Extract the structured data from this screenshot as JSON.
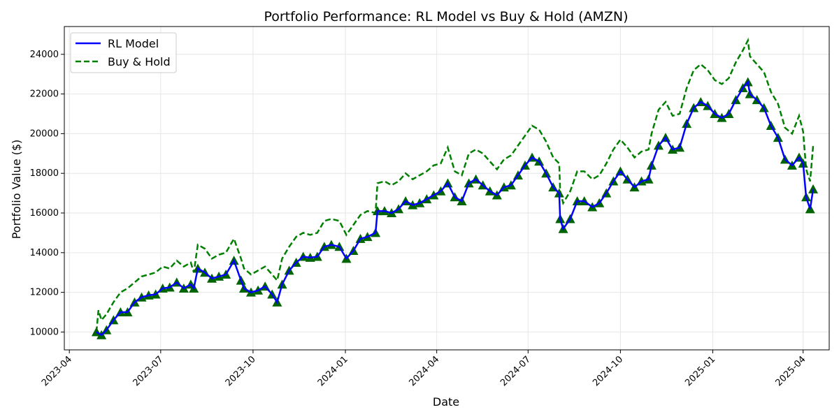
{
  "chart_data": {
    "type": "line",
    "title": "Portfolio Performance: RL Model vs Buy & Hold (AMZN)",
    "xlabel": "Date",
    "ylabel": "Portfolio Value ($)",
    "xlim": [
      "2023-03-27",
      "2025-04-27"
    ],
    "ylim": [
      9100,
      25400
    ],
    "x_ticks": [
      "2023-04-01",
      "2023-07-01",
      "2023-10-01",
      "2024-01-01",
      "2024-04-01",
      "2024-07-01",
      "2024-10-01",
      "2025-01-01",
      "2025-04-01"
    ],
    "x_tick_labels": [
      "2023-04",
      "2023-07",
      "2023-10",
      "2024-01",
      "2024-04",
      "2024-07",
      "2024-10",
      "2025-01",
      "2025-04"
    ],
    "y_ticks": [
      10000,
      12000,
      14000,
      16000,
      18000,
      20000,
      22000,
      24000
    ],
    "y_tick_labels": [
      "10000",
      "12000",
      "14000",
      "16000",
      "18000",
      "20000",
      "22000",
      "24000"
    ],
    "grid": true,
    "legend_position": "upper-left",
    "series": [
      {
        "name": "RL Model",
        "color": "#0000ff",
        "style": "solid",
        "points": [
          [
            "2023-04-28",
            10000
          ],
          [
            "2023-05-03",
            9850
          ],
          [
            "2023-05-08",
            10100
          ],
          [
            "2023-05-15",
            10600
          ],
          [
            "2023-05-22",
            11000
          ],
          [
            "2023-05-29",
            11000
          ],
          [
            "2023-06-05",
            11500
          ],
          [
            "2023-06-12",
            11750
          ],
          [
            "2023-06-19",
            11850
          ],
          [
            "2023-06-26",
            11900
          ],
          [
            "2023-07-03",
            12200
          ],
          [
            "2023-07-10",
            12250
          ],
          [
            "2023-07-17",
            12500
          ],
          [
            "2023-07-24",
            12200
          ],
          [
            "2023-07-31",
            12400
          ],
          [
            "2023-08-03",
            12200
          ],
          [
            "2023-08-07",
            13200
          ],
          [
            "2023-08-14",
            13000
          ],
          [
            "2023-08-21",
            12700
          ],
          [
            "2023-08-28",
            12800
          ],
          [
            "2023-09-04",
            12900
          ],
          [
            "2023-09-12",
            13600
          ],
          [
            "2023-09-19",
            12600
          ],
          [
            "2023-09-22",
            12200
          ],
          [
            "2023-09-29",
            12000
          ],
          [
            "2023-10-06",
            12100
          ],
          [
            "2023-10-13",
            12300
          ],
          [
            "2023-10-20",
            11900
          ],
          [
            "2023-10-25",
            11500
          ],
          [
            "2023-10-30",
            12400
          ],
          [
            "2023-11-06",
            13100
          ],
          [
            "2023-11-13",
            13500
          ],
          [
            "2023-11-20",
            13800
          ],
          [
            "2023-11-27",
            13750
          ],
          [
            "2023-12-04",
            13800
          ],
          [
            "2023-12-11",
            14300
          ],
          [
            "2023-12-18",
            14400
          ],
          [
            "2023-12-26",
            14300
          ],
          [
            "2024-01-02",
            13700
          ],
          [
            "2024-01-09",
            14100
          ],
          [
            "2024-01-16",
            14700
          ],
          [
            "2024-01-23",
            14800
          ],
          [
            "2024-01-31",
            15000
          ],
          [
            "2024-02-02",
            16100
          ],
          [
            "2024-02-09",
            16100
          ],
          [
            "2024-02-16",
            16000
          ],
          [
            "2024-02-23",
            16200
          ],
          [
            "2024-03-01",
            16600
          ],
          [
            "2024-03-08",
            16400
          ],
          [
            "2024-03-15",
            16500
          ],
          [
            "2024-03-22",
            16700
          ],
          [
            "2024-03-29",
            16900
          ],
          [
            "2024-04-05",
            17100
          ],
          [
            "2024-04-12",
            17500
          ],
          [
            "2024-04-19",
            16800
          ],
          [
            "2024-04-26",
            16600
          ],
          [
            "2024-05-03",
            17500
          ],
          [
            "2024-05-10",
            17700
          ],
          [
            "2024-05-17",
            17400
          ],
          [
            "2024-05-24",
            17100
          ],
          [
            "2024-05-31",
            16900
          ],
          [
            "2024-06-07",
            17300
          ],
          [
            "2024-06-14",
            17400
          ],
          [
            "2024-06-21",
            17900
          ],
          [
            "2024-06-28",
            18400
          ],
          [
            "2024-07-05",
            18800
          ],
          [
            "2024-07-12",
            18600
          ],
          [
            "2024-07-19",
            18000
          ],
          [
            "2024-07-26",
            17300
          ],
          [
            "2024-08-01",
            17000
          ],
          [
            "2024-08-02",
            15700
          ],
          [
            "2024-08-05",
            15200
          ],
          [
            "2024-08-12",
            15700
          ],
          [
            "2024-08-19",
            16600
          ],
          [
            "2024-08-26",
            16600
          ],
          [
            "2024-09-03",
            16300
          ],
          [
            "2024-09-10",
            16500
          ],
          [
            "2024-09-17",
            17000
          ],
          [
            "2024-09-24",
            17600
          ],
          [
            "2024-10-01",
            18100
          ],
          [
            "2024-10-08",
            17700
          ],
          [
            "2024-10-15",
            17300
          ],
          [
            "2024-10-22",
            17600
          ],
          [
            "2024-10-29",
            17700
          ],
          [
            "2024-11-01",
            18400
          ],
          [
            "2024-11-08",
            19400
          ],
          [
            "2024-11-15",
            19800
          ],
          [
            "2024-11-22",
            19200
          ],
          [
            "2024-11-29",
            19300
          ],
          [
            "2024-12-06",
            20500
          ],
          [
            "2024-12-13",
            21300
          ],
          [
            "2024-12-20",
            21600
          ],
          [
            "2024-12-27",
            21400
          ],
          [
            "2025-01-03",
            21000
          ],
          [
            "2025-01-10",
            20800
          ],
          [
            "2025-01-17",
            21000
          ],
          [
            "2025-01-24",
            21700
          ],
          [
            "2025-01-31",
            22300
          ],
          [
            "2025-02-05",
            22600
          ],
          [
            "2025-02-07",
            22000
          ],
          [
            "2025-02-14",
            21700
          ],
          [
            "2025-02-21",
            21300
          ],
          [
            "2025-02-28",
            20400
          ],
          [
            "2025-03-07",
            19800
          ],
          [
            "2025-03-14",
            18700
          ],
          [
            "2025-03-21",
            18400
          ],
          [
            "2025-03-28",
            18800
          ],
          [
            "2025-04-01",
            18500
          ],
          [
            "2025-04-04",
            16800
          ],
          [
            "2025-04-08",
            16200
          ],
          [
            "2025-04-11",
            17200
          ]
        ]
      },
      {
        "name": "Buy & Hold",
        "color": "#008000",
        "style": "dashed",
        "points": [
          [
            "2023-04-28",
            10000
          ],
          [
            "2023-04-30",
            11100
          ],
          [
            "2023-05-03",
            10600
          ],
          [
            "2023-05-08",
            10900
          ],
          [
            "2023-05-15",
            11500
          ],
          [
            "2023-05-22",
            12000
          ],
          [
            "2023-05-29",
            12200
          ],
          [
            "2023-06-05",
            12500
          ],
          [
            "2023-06-12",
            12800
          ],
          [
            "2023-06-19",
            12900
          ],
          [
            "2023-06-26",
            13000
          ],
          [
            "2023-07-03",
            13300
          ],
          [
            "2023-07-10",
            13200
          ],
          [
            "2023-07-17",
            13600
          ],
          [
            "2023-07-24",
            13300
          ],
          [
            "2023-07-31",
            13500
          ],
          [
            "2023-08-03",
            13000
          ],
          [
            "2023-08-07",
            14400
          ],
          [
            "2023-08-14",
            14200
          ],
          [
            "2023-08-21",
            13700
          ],
          [
            "2023-08-28",
            13900
          ],
          [
            "2023-09-04",
            14000
          ],
          [
            "2023-09-12",
            14700
          ],
          [
            "2023-09-19",
            13700
          ],
          [
            "2023-09-22",
            13200
          ],
          [
            "2023-09-29",
            12900
          ],
          [
            "2023-10-06",
            13100
          ],
          [
            "2023-10-13",
            13300
          ],
          [
            "2023-10-20",
            12900
          ],
          [
            "2023-10-25",
            12600
          ],
          [
            "2023-10-30",
            13700
          ],
          [
            "2023-11-06",
            14300
          ],
          [
            "2023-11-13",
            14800
          ],
          [
            "2023-11-20",
            15000
          ],
          [
            "2023-11-27",
            14900
          ],
          [
            "2023-12-04",
            15000
          ],
          [
            "2023-12-11",
            15600
          ],
          [
            "2023-12-18",
            15700
          ],
          [
            "2023-12-26",
            15600
          ],
          [
            "2024-01-02",
            14900
          ],
          [
            "2024-01-09",
            15400
          ],
          [
            "2024-01-16",
            15900
          ],
          [
            "2024-01-23",
            16100
          ],
          [
            "2024-01-31",
            16000
          ],
          [
            "2024-02-02",
            17500
          ],
          [
            "2024-02-09",
            17600
          ],
          [
            "2024-02-16",
            17400
          ],
          [
            "2024-02-23",
            17600
          ],
          [
            "2024-03-01",
            18000
          ],
          [
            "2024-03-08",
            17700
          ],
          [
            "2024-03-15",
            17900
          ],
          [
            "2024-03-22",
            18100
          ],
          [
            "2024-03-29",
            18400
          ],
          [
            "2024-04-05",
            18500
          ],
          [
            "2024-04-12",
            19300
          ],
          [
            "2024-04-19",
            18100
          ],
          [
            "2024-04-26",
            17900
          ],
          [
            "2024-05-03",
            19000
          ],
          [
            "2024-05-10",
            19200
          ],
          [
            "2024-05-17",
            19000
          ],
          [
            "2024-05-24",
            18600
          ],
          [
            "2024-05-31",
            18200
          ],
          [
            "2024-06-07",
            18700
          ],
          [
            "2024-06-14",
            18900
          ],
          [
            "2024-06-21",
            19400
          ],
          [
            "2024-06-28",
            19900
          ],
          [
            "2024-07-05",
            20400
          ],
          [
            "2024-07-12",
            20200
          ],
          [
            "2024-07-19",
            19600
          ],
          [
            "2024-07-26",
            18800
          ],
          [
            "2024-08-01",
            18500
          ],
          [
            "2024-08-02",
            17100
          ],
          [
            "2024-08-05",
            16500
          ],
          [
            "2024-08-12",
            17100
          ],
          [
            "2024-08-19",
            18100
          ],
          [
            "2024-08-26",
            18100
          ],
          [
            "2024-09-03",
            17700
          ],
          [
            "2024-09-10",
            17900
          ],
          [
            "2024-09-17",
            18500
          ],
          [
            "2024-09-24",
            19200
          ],
          [
            "2024-10-01",
            19700
          ],
          [
            "2024-10-08",
            19300
          ],
          [
            "2024-10-15",
            18800
          ],
          [
            "2024-10-22",
            19100
          ],
          [
            "2024-10-29",
            19200
          ],
          [
            "2024-11-01",
            20000
          ],
          [
            "2024-11-08",
            21200
          ],
          [
            "2024-11-15",
            21600
          ],
          [
            "2024-11-22",
            20900
          ],
          [
            "2024-11-29",
            21000
          ],
          [
            "2024-12-06",
            22300
          ],
          [
            "2024-12-13",
            23200
          ],
          [
            "2024-12-20",
            23500
          ],
          [
            "2024-12-27",
            23200
          ],
          [
            "2025-01-03",
            22700
          ],
          [
            "2025-01-10",
            22500
          ],
          [
            "2025-01-17",
            22800
          ],
          [
            "2025-01-24",
            23600
          ],
          [
            "2025-01-31",
            24200
          ],
          [
            "2025-02-05",
            24700
          ],
          [
            "2025-02-07",
            23900
          ],
          [
            "2025-02-14",
            23500
          ],
          [
            "2025-02-21",
            23100
          ],
          [
            "2025-02-28",
            22100
          ],
          [
            "2025-03-07",
            21500
          ],
          [
            "2025-03-14",
            20300
          ],
          [
            "2025-03-21",
            20000
          ],
          [
            "2025-03-28",
            20900
          ],
          [
            "2025-04-01",
            20100
          ],
          [
            "2025-04-04",
            18200
          ],
          [
            "2025-04-08",
            17600
          ],
          [
            "2025-04-11",
            19400
          ]
        ]
      }
    ],
    "markers": {
      "shape": "triangle-up",
      "color": "#006400",
      "meaning_note": ""
    }
  }
}
